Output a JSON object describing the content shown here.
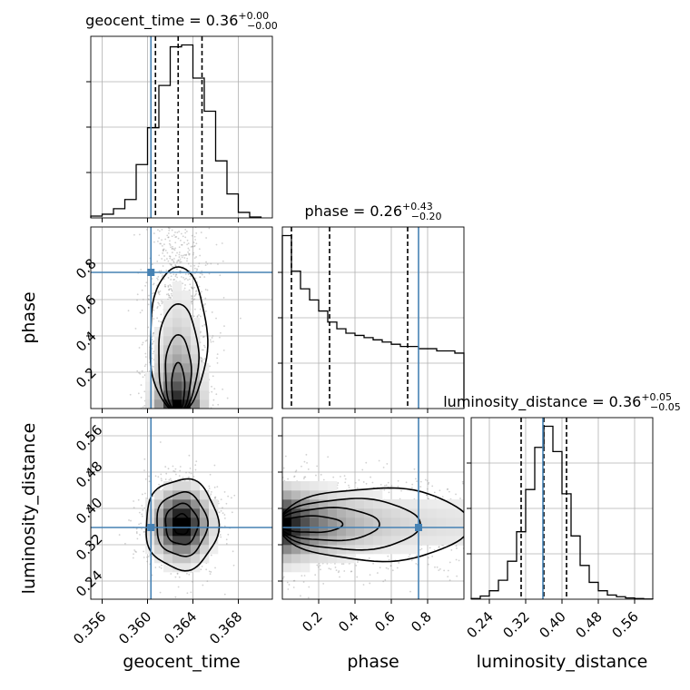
{
  "colors": {
    "truth": "#4682b4",
    "line": "#000000",
    "grid": "#b0b0b0",
    "density": "#000000"
  },
  "chart_data": {
    "type": "corner",
    "parameters": [
      {
        "key": "geocent_time",
        "label": "geocent_time",
        "title": {
          "name": "geocent_time",
          "median": "0.36",
          "plus": "+0.00",
          "minus": "−0.00"
        },
        "range": [
          0.355,
          0.371
        ],
        "ticks": [
          0.356,
          0.36,
          0.364,
          0.368
        ],
        "tick_labels": [
          "0.356",
          "0.360",
          "0.364",
          "0.368"
        ],
        "truth": 0.3603,
        "quantiles": [
          0.3607,
          0.3627,
          0.3648
        ],
        "hist_edges": [
          0.355,
          0.356,
          0.357,
          0.358,
          0.359,
          0.36,
          0.361,
          0.362,
          0.363,
          0.364,
          0.365,
          0.366,
          0.367,
          0.368,
          0.369,
          0.37
        ],
        "hist_counts": [
          1,
          2,
          5,
          10,
          29,
          49,
          72,
          93,
          94,
          76,
          58,
          31,
          13,
          3,
          0.5
        ]
      },
      {
        "key": "phase",
        "label": "phase",
        "title": {
          "name": "phase",
          "median": "0.26",
          "plus": "+0.43",
          "minus": "−0.20"
        },
        "range": [
          0.0,
          1.0
        ],
        "ticks": [
          0.2,
          0.4,
          0.6,
          0.8
        ],
        "tick_labels": [
          "0.2",
          "0.4",
          "0.6",
          "0.8"
        ],
        "truth": 0.75,
        "quantiles": [
          0.05,
          0.26,
          0.69
        ],
        "hist_edges": [
          0.0,
          0.05,
          0.1,
          0.15,
          0.2,
          0.25,
          0.3,
          0.35,
          0.4,
          0.45,
          0.5,
          0.55,
          0.6,
          0.65,
          0.7,
          0.75,
          0.8,
          0.85,
          0.9,
          0.95,
          1.0
        ],
        "hist_counts": [
          78,
          62,
          54,
          49,
          44,
          39,
          36,
          34,
          33,
          32,
          31,
          30,
          29,
          28,
          28,
          27,
          27,
          26,
          26,
          25
        ]
      },
      {
        "key": "luminosity_distance",
        "label": "luminosity_distance",
        "title": {
          "name": "luminosity_distance",
          "median": "0.36",
          "plus": "+0.05",
          "minus": "−0.05"
        },
        "range": [
          0.2,
          0.6
        ],
        "ticks": [
          0.24,
          0.32,
          0.4,
          0.48,
          0.56
        ],
        "tick_labels": [
          "0.24",
          "0.32",
          "0.40",
          "0.48",
          "0.56"
        ],
        "truth": 0.358,
        "quantiles": [
          0.31,
          0.36,
          0.41
        ],
        "hist_edges": [
          0.2,
          0.22,
          0.24,
          0.26,
          0.28,
          0.3,
          0.32,
          0.34,
          0.36,
          0.38,
          0.4,
          0.42,
          0.44,
          0.46,
          0.48,
          0.5,
          0.52,
          0.54,
          0.56,
          0.58,
          0.6
        ],
        "hist_counts": [
          0.3,
          1.5,
          4,
          9,
          18,
          32,
          52,
          72,
          82,
          70,
          50,
          30,
          16,
          8,
          4,
          2,
          1.2,
          0.6,
          0.3,
          0.1
        ]
      }
    ],
    "pairs": [
      {
        "x": "geocent_time",
        "y": "phase",
        "mean": [
          0.3627,
          0.22
        ],
        "sd": [
          0.0014,
          0.26
        ],
        "rho": 0.0,
        "y_skew": "low",
        "truth": [
          0.3603,
          0.75
        ]
      },
      {
        "x": "geocent_time",
        "y": "luminosity_distance",
        "mean": [
          0.363,
          0.365
        ],
        "sd": [
          0.0016,
          0.05
        ],
        "rho": 0.0,
        "truth": [
          0.3603,
          0.358
        ]
      },
      {
        "x": "phase",
        "y": "luminosity_distance",
        "mean": [
          0.02,
          0.365
        ],
        "sd": [
          0.32,
          0.05
        ],
        "rho": 0.0,
        "x_skew": "low",
        "truth": [
          0.75,
          0.358
        ]
      }
    ],
    "grid": true,
    "legend": "none"
  }
}
